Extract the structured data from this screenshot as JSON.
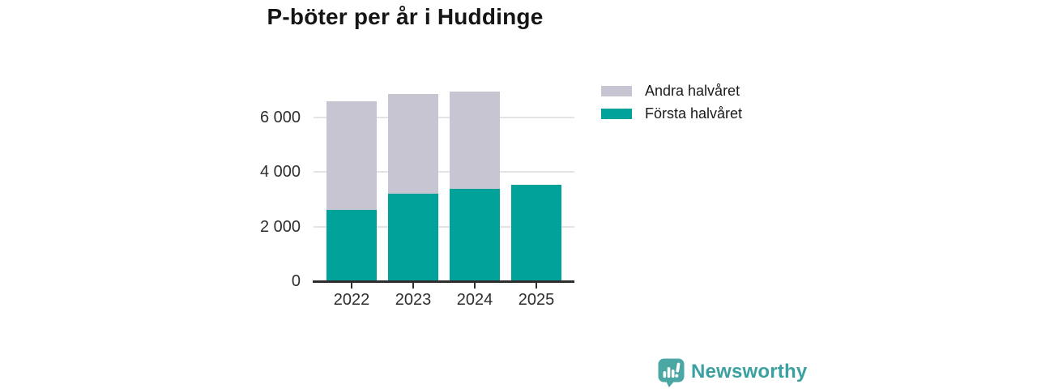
{
  "page": {
    "background": "#ffffff"
  },
  "chart_data": {
    "type": "bar",
    "stacked": true,
    "title": "P-böter per år i Huddinge",
    "categories": [
      "2022",
      "2023",
      "2024",
      "2025"
    ],
    "series": [
      {
        "name": "Första halvåret",
        "color": "#00a29a",
        "values": [
          2600,
          3200,
          3400,
          3550
        ]
      },
      {
        "name": "Andra halvåret",
        "color": "#c6c5d1",
        "values": [
          4000,
          3650,
          3550,
          0
        ]
      }
    ],
    "totals": [
      6600,
      6850,
      6950,
      3550
    ],
    "xlabel": "",
    "ylabel": "",
    "ylim": [
      0,
      7040
    ],
    "yticks": [
      0,
      2000,
      4000,
      6000
    ],
    "ytick_labels": [
      "0",
      "2 000",
      "4 000",
      "6 000"
    ],
    "grid": true,
    "legend": {
      "position": "top-right",
      "items": [
        {
          "label": "Andra halvåret",
          "color": "#c6c5d1"
        },
        {
          "label": "Första halvåret",
          "color": "#00a29a"
        }
      ]
    }
  },
  "branding": {
    "wordmark": "Newsworthy",
    "wordmark_color": "#3aa0a0",
    "icon": "newsworthy-speech-bubble-bar-chart-icon",
    "icon_color": "#4ba7a3"
  },
  "colors": {
    "axis": "#2d2d2d",
    "grid": "#e4e4e6",
    "title_text": "#151515",
    "tick_text": "#2e2e2e",
    "legend_text": "#1a1a1a"
  }
}
